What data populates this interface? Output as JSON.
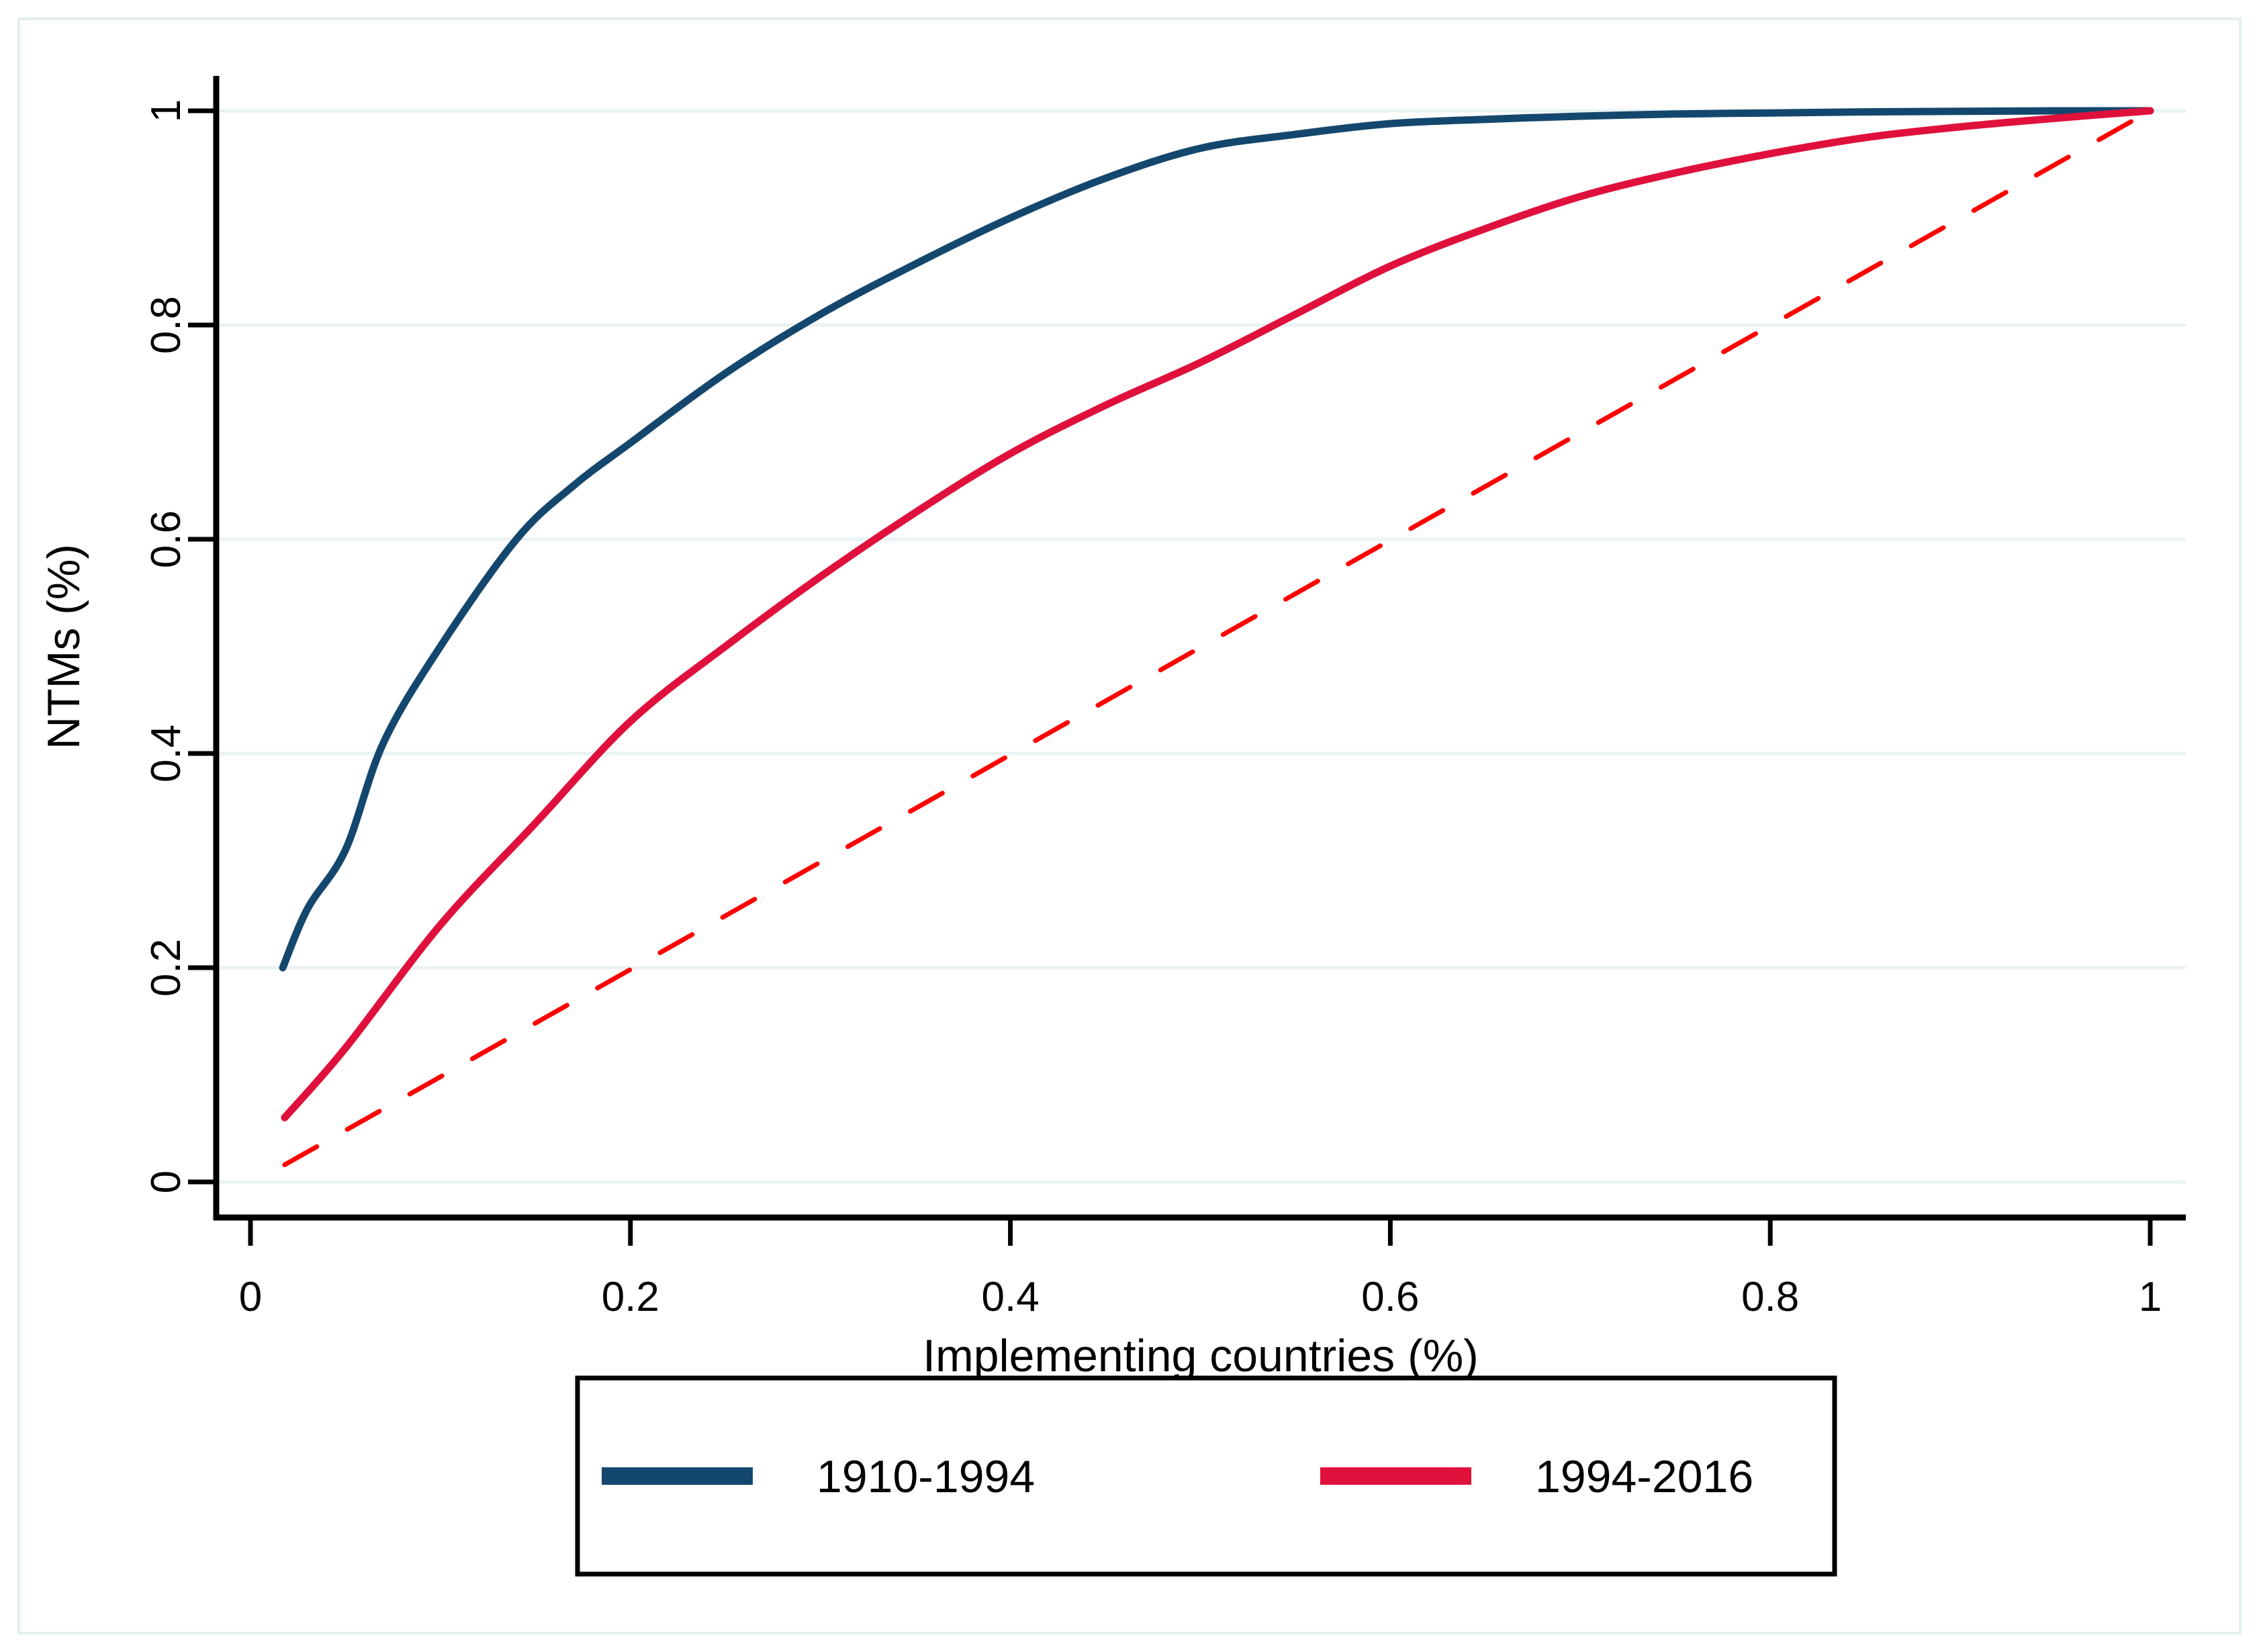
{
  "figure": {
    "background": "#ffffff",
    "outer_border_color": "#e3eeef",
    "plot_border_color": "#000000",
    "gridline_color": "#eaf2f3",
    "text_color": "#000000"
  },
  "chart_data": {
    "type": "line",
    "title": "",
    "xlabel": "Implementing countries (%)",
    "ylabel": "NTMs (%)",
    "xlim": [
      0,
      1
    ],
    "ylim": [
      0,
      1
    ],
    "xticks": [
      "0",
      "0.2",
      "0.4",
      "0.6",
      "0.8",
      "1"
    ],
    "yticks": [
      "0",
      "0.2",
      "0.4",
      "0.6",
      "0.8",
      "1"
    ],
    "xtick_values": [
      0,
      0.2,
      0.4,
      0.6,
      0.8,
      1
    ],
    "ytick_values": [
      0,
      0.2,
      0.4,
      0.6,
      0.8,
      1
    ],
    "grid": "horizontal-only",
    "legend_position": "bottom-box",
    "series": [
      {
        "name": "1910-1994",
        "color": "#14476e",
        "style": "solid",
        "in_legend": true,
        "x": [
          0.017,
          0.03,
          0.05,
          0.07,
          0.1,
          0.14,
          0.17,
          0.2,
          0.25,
          0.3,
          0.35,
          0.4,
          0.45,
          0.5,
          0.55,
          0.6,
          0.65,
          0.7,
          0.75,
          0.8,
          0.85,
          0.9,
          0.95,
          1.0
        ],
        "y": [
          0.2,
          0.255,
          0.31,
          0.41,
          0.5,
          0.6,
          0.65,
          0.69,
          0.755,
          0.81,
          0.857,
          0.9,
          0.937,
          0.965,
          0.978,
          0.988,
          0.992,
          0.995,
          0.997,
          0.998,
          0.999,
          0.9995,
          1.0,
          1.0
        ]
      },
      {
        "name": "1994-2016",
        "color": "#e0103c",
        "style": "solid",
        "in_legend": true,
        "x": [
          0.018,
          0.05,
          0.1,
          0.15,
          0.2,
          0.25,
          0.3,
          0.35,
          0.4,
          0.45,
          0.5,
          0.55,
          0.6,
          0.65,
          0.7,
          0.75,
          0.8,
          0.85,
          0.9,
          0.95,
          1.0
        ],
        "y": [
          0.06,
          0.125,
          0.24,
          0.335,
          0.43,
          0.5,
          0.565,
          0.625,
          0.68,
          0.725,
          0.765,
          0.81,
          0.855,
          0.89,
          0.92,
          0.942,
          0.96,
          0.975,
          0.985,
          0.993,
          1.0
        ]
      },
      {
        "name": "equality-line",
        "color": "#ff0000",
        "style": "dashed",
        "in_legend": false,
        "x": [
          0.018,
          1.0
        ],
        "y": [
          0.016,
          1.0
        ]
      }
    ]
  },
  "legend": {
    "items": [
      {
        "label": "1910-1994",
        "color": "#14476e"
      },
      {
        "label": "1994-2016",
        "color": "#e0103c"
      }
    ]
  }
}
